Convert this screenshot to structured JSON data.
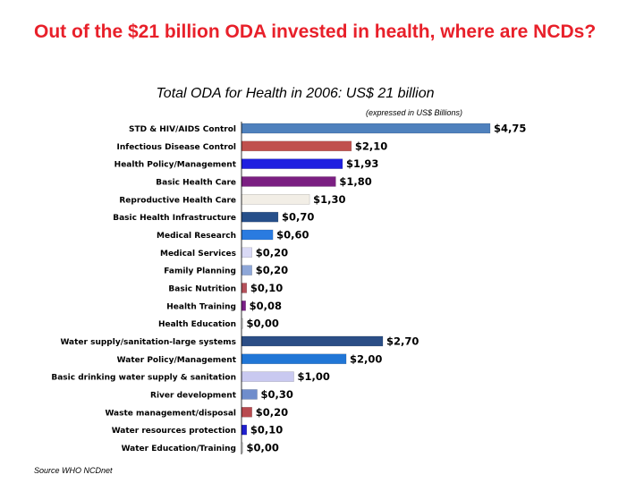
{
  "slide": {
    "title": "Out of the $21 billion ODA invested in health, where are NCDs?",
    "source": "Source WHO NCDnet"
  },
  "chart_data": {
    "type": "bar",
    "orientation": "horizontal",
    "title": "Total ODA for Health in 2006: US$ 21 billion",
    "subtitle": "(expressed in US$ Billions)",
    "xlim": [
      0,
      4.75
    ],
    "categories": [
      "STD & HIV/AIDS Control",
      "Infectious Disease Control",
      "Health Policy/Management",
      "Basic Health Care",
      "Reproductive Health Care",
      "Basic Health Infrastructure",
      "Medical Research",
      "Medical Services",
      "Family Planning",
      "Basic Nutrition",
      "Health Training",
      "Health Education",
      "Water supply/sanitation-large systems",
      "Water Policy/Management",
      "Basic drinking water supply & sanitation",
      "River development",
      "Waste management/disposal",
      "Water resources protection",
      "Water Education/Training"
    ],
    "values": [
      4.75,
      2.1,
      1.93,
      1.8,
      1.3,
      0.7,
      0.6,
      0.2,
      0.2,
      0.1,
      0.08,
      0.0,
      2.7,
      2.0,
      1.0,
      0.3,
      0.2,
      0.1,
      0.0
    ],
    "value_labels": [
      "$4,75",
      "$2,10",
      "$1,93",
      "$1,80",
      "$1,30",
      "$0,70",
      "$0,60",
      "$0,20",
      "$0,20",
      "$0,10",
      "$0,08",
      "$0,00",
      "$2,70",
      "$2,00",
      "$1,00",
      "$0,30",
      "$0,20",
      "$0,10",
      "$0,00"
    ],
    "colors": [
      "#4f81bd",
      "#c0504d",
      "#1f1fe0",
      "#7b1f82",
      "#f2eee6",
      "#264f8a",
      "#2a7be0",
      "#d9d9f5",
      "#8ea7d8",
      "#b5505a",
      "#7a1e86",
      "#ffffff",
      "#2b4e86",
      "#2076d6",
      "#c9c9f0",
      "#6f8dcc",
      "#b84a4f",
      "#1f1fcf",
      "#ffffff"
    ]
  }
}
